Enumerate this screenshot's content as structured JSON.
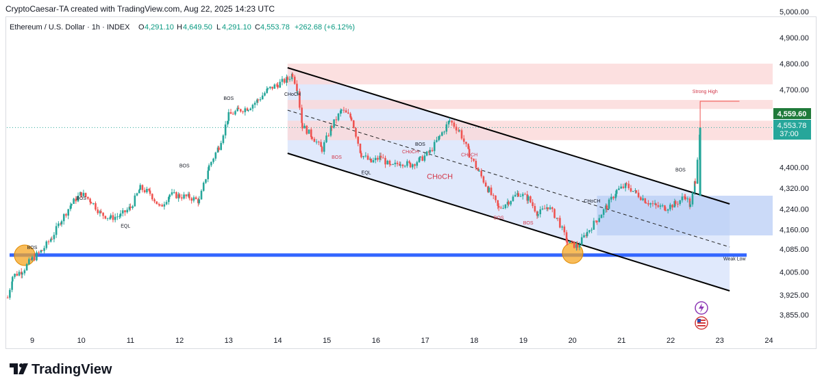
{
  "header": {
    "credit": "CryptoCaesar-TA created with TradingView.com, Aug 22, 2025 14:23 UTC"
  },
  "symbol": {
    "name": "Ethereum / U.S. Dollar · 1h · INDEX",
    "open_label": "O",
    "open": "4,291.10",
    "high_label": "H",
    "high": "4,649.50",
    "low_label": "L",
    "low": "4,291.10",
    "close_label": "C",
    "close": "4,553.78",
    "change": "+262.68 (+6.12%)"
  },
  "price_tags": {
    "high_tag": "4,559.60",
    "last_price": "4,553.78",
    "countdown": "37:00"
  },
  "brand": {
    "name": "TradingView"
  },
  "colors": {
    "up": "#26a69a",
    "down": "#ef5350",
    "channel": "#d6e2fb",
    "support": "#3366ff",
    "resistance": "#fbd8d8",
    "tag": "#1f7a3a"
  },
  "chart_data": {
    "type": "candlestick",
    "title": "Ethereum / U.S. Dollar · 1h · INDEX",
    "x_ticks": [
      "9",
      "10",
      "11",
      "12",
      "13",
      "14",
      "15",
      "16",
      "17",
      "18",
      "19",
      "20",
      "21",
      "22",
      "23",
      "24"
    ],
    "y_ticks": [
      "5,000.00",
      "4,900.00",
      "4,800.00",
      "4,700.00",
      "4,400.00",
      "4,320.00",
      "4,240.00",
      "4,160.00",
      "4,085.00",
      "4,005.00",
      "3,925.00",
      "3,855.00"
    ],
    "ylim": [
      3840,
      5000
    ],
    "xlim": [
      8.5,
      24.05
    ],
    "price_path": [
      [
        8.5,
        3915
      ],
      [
        8.6,
        3990
      ],
      [
        8.8,
        4010
      ],
      [
        9.0,
        4050
      ],
      [
        9.2,
        4080
      ],
      [
        9.4,
        4130
      ],
      [
        9.6,
        4200
      ],
      [
        9.8,
        4260
      ],
      [
        10.0,
        4300
      ],
      [
        10.2,
        4270
      ],
      [
        10.4,
        4220
      ],
      [
        10.6,
        4205
      ],
      [
        10.8,
        4215
      ],
      [
        11.0,
        4245
      ],
      [
        11.2,
        4320
      ],
      [
        11.4,
        4300
      ],
      [
        11.6,
        4245
      ],
      [
        11.8,
        4295
      ],
      [
        12.0,
        4290
      ],
      [
        12.2,
        4285
      ],
      [
        12.4,
        4270
      ],
      [
        12.6,
        4405
      ],
      [
        12.8,
        4480
      ],
      [
        13.0,
        4600
      ],
      [
        13.2,
        4620
      ],
      [
        13.4,
        4630
      ],
      [
        13.6,
        4660
      ],
      [
        13.8,
        4700
      ],
      [
        14.0,
        4720
      ],
      [
        14.2,
        4740
      ],
      [
        14.3,
        4760
      ],
      [
        14.4,
        4700
      ],
      [
        14.5,
        4560
      ],
      [
        14.7,
        4520
      ],
      [
        14.9,
        4470
      ],
      [
        15.1,
        4560
      ],
      [
        15.3,
        4620
      ],
      [
        15.5,
        4590
      ],
      [
        15.7,
        4450
      ],
      [
        15.9,
        4420
      ],
      [
        16.1,
        4440
      ],
      [
        16.3,
        4400
      ],
      [
        16.5,
        4420
      ],
      [
        16.7,
        4410
      ],
      [
        16.9,
        4430
      ],
      [
        17.1,
        4460
      ],
      [
        17.3,
        4520
      ],
      [
        17.5,
        4580
      ],
      [
        17.7,
        4540
      ],
      [
        17.9,
        4450
      ],
      [
        18.1,
        4380
      ],
      [
        18.3,
        4310
      ],
      [
        18.5,
        4240
      ],
      [
        18.7,
        4270
      ],
      [
        18.9,
        4300
      ],
      [
        19.1,
        4280
      ],
      [
        19.3,
        4220
      ],
      [
        19.5,
        4250
      ],
      [
        19.7,
        4200
      ],
      [
        19.9,
        4110
      ],
      [
        20.1,
        4095
      ],
      [
        20.3,
        4150
      ],
      [
        20.5,
        4200
      ],
      [
        20.7,
        4250
      ],
      [
        20.9,
        4310
      ],
      [
        21.1,
        4330
      ],
      [
        21.3,
        4300
      ],
      [
        21.5,
        4270
      ],
      [
        21.7,
        4250
      ],
      [
        21.9,
        4245
      ],
      [
        22.1,
        4260
      ],
      [
        22.3,
        4290
      ],
      [
        22.4,
        4250
      ],
      [
        22.5,
        4350
      ],
      [
        22.6,
        4553.78
      ]
    ],
    "support_band": [
      4058,
      4070
    ],
    "resistance_zones": [
      [
        4720,
        4800
      ],
      [
        4625,
        4660
      ],
      [
        4505,
        4580
      ]
    ],
    "annotations": [
      {
        "text": "BOS",
        "x": 9.0,
        "y": 4085
      },
      {
        "text": "BOS",
        "x": 10.0,
        "y": 4275
      },
      {
        "text": "EQL",
        "x": 10.9,
        "y": 4168
      },
      {
        "text": "BOS",
        "x": 12.1,
        "y": 4400
      },
      {
        "text": "BOS",
        "x": 13.0,
        "y": 4660
      },
      {
        "text": "CHoCH",
        "x": 14.3,
        "y": 4676
      },
      {
        "text": "BOS",
        "x": 15.2,
        "y": 4433
      },
      {
        "text": "EQL",
        "x": 15.8,
        "y": 4374
      },
      {
        "text": "CHoCH",
        "x": 16.7,
        "y": 4455
      },
      {
        "text": "BOS",
        "x": 16.9,
        "y": 4483
      },
      {
        "text": "CHoCH",
        "x": 17.3,
        "y": 4355
      },
      {
        "text": "CHoCH",
        "x": 17.9,
        "y": 4443
      },
      {
        "text": "BOS",
        "x": 18.5,
        "y": 4200
      },
      {
        "text": "BOS",
        "x": 19.1,
        "y": 4180
      },
      {
        "text": "CHoCH",
        "x": 20.4,
        "y": 4265
      },
      {
        "text": "BOS",
        "x": 22.2,
        "y": 4385
      },
      {
        "text": "Strong High",
        "x": 22.7,
        "y": 4686
      },
      {
        "text": "Weak Low",
        "x": 23.3,
        "y": 4045
      }
    ]
  }
}
